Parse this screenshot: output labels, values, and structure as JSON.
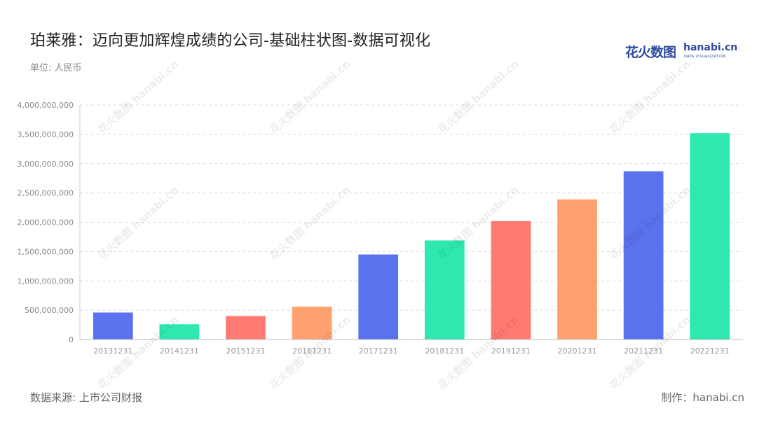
{
  "title": "珀莱雅：迈向更加辉煌成绩的公司-基础柱状图-数据可视化",
  "unit_label": "单位: 人民币",
  "logo": {
    "cn": "花火数图",
    "en": "hanabi.cn",
    "sub": "DATA VISUALIZATION"
  },
  "source": "数据来源: 上市公司财报",
  "maker": "制作：hanabi.cn",
  "chart_data": {
    "type": "bar",
    "categories": [
      "20131231",
      "20141231",
      "20151231",
      "20161231",
      "20171231",
      "20181231",
      "20191231",
      "20201231",
      "20211231",
      "20221231"
    ],
    "values": [
      460000000,
      260000000,
      400000000,
      560000000,
      1450000000,
      1690000000,
      2020000000,
      2390000000,
      2870000000,
      3520000000
    ],
    "ylim": [
      0,
      4000000000
    ],
    "yticks": [
      0,
      500000000,
      1000000000,
      1500000000,
      2000000000,
      2500000000,
      3000000000,
      3500000000,
      4000000000
    ],
    "ytick_labels": [
      "0",
      "500,000,000",
      "1,000,000,000",
      "1,500,000,000",
      "2,000,000,000",
      "2,500,000,000",
      "3,000,000,000",
      "3,500,000,000",
      "4,000,000,000"
    ],
    "bar_colors": [
      "#5b72ee",
      "#2ee8b0",
      "#ff7a72",
      "#ffa16f",
      "#5b72ee",
      "#2ee8b0",
      "#ff7a72",
      "#ffa16f",
      "#5b72ee",
      "#2ee8b0"
    ],
    "grid": true,
    "legend": "none"
  }
}
